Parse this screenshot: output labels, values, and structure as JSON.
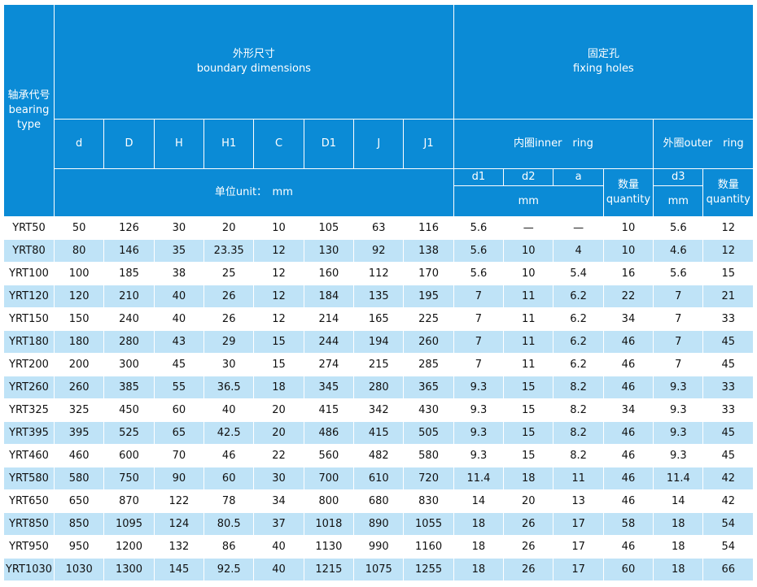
{
  "header": {
    "bearing_type": [
      "轴承代号",
      "bearing",
      "type"
    ],
    "boundary": [
      "外形尺寸",
      "boundary dimensions"
    ],
    "fixing": [
      "固定孔",
      "fixing holes"
    ],
    "columns": [
      "d",
      "D",
      "H",
      "H1",
      "C",
      "D1",
      "J",
      "J1"
    ],
    "inner_ring": "内圈inner　ring",
    "outer_ring": "外圈outer　ring",
    "unit": "单位unit：　mm",
    "d1": "d1",
    "d2": "d2",
    "a": "a",
    "d3": "d3",
    "quantity_inner": [
      "数量",
      "quantity"
    ],
    "quantity_outer": [
      "数量",
      "quantity"
    ],
    "mm_inner": "mm",
    "mm_outer": "mm"
  },
  "table": {
    "rows": [
      [
        "YRT50",
        50,
        126,
        30,
        20,
        10,
        105,
        63,
        116,
        5.6,
        "—",
        "—",
        10,
        5.6,
        12
      ],
      [
        "YRT80",
        80,
        146,
        35,
        23.35,
        12,
        130,
        92,
        138,
        5.6,
        10,
        4,
        10,
        4.6,
        12
      ],
      [
        "YRT100",
        100,
        185,
        38,
        25,
        12,
        160,
        112,
        170,
        5.6,
        10,
        5.4,
        16,
        5.6,
        15
      ],
      [
        "YRT120",
        120,
        210,
        40,
        26,
        12,
        184,
        135,
        195,
        7,
        11,
        6.2,
        22,
        7,
        21
      ],
      [
        "YRT150",
        150,
        240,
        40,
        26,
        12,
        214,
        165,
        225,
        7,
        11,
        6.2,
        34,
        7,
        33
      ],
      [
        "YRT180",
        180,
        280,
        43,
        29,
        15,
        244,
        194,
        260,
        7,
        11,
        6.2,
        46,
        7,
        45
      ],
      [
        "YRT200",
        200,
        300,
        45,
        30,
        15,
        274,
        215,
        285,
        7,
        11,
        6.2,
        46,
        7,
        45
      ],
      [
        "YRT260",
        260,
        385,
        55,
        36.5,
        18,
        345,
        280,
        365,
        9.3,
        15,
        8.2,
        46,
        9.3,
        33
      ],
      [
        "YRT325",
        325,
        450,
        60,
        40,
        20,
        415,
        342,
        430,
        9.3,
        15,
        8.2,
        34,
        9.3,
        33
      ],
      [
        "YRT395",
        395,
        525,
        65,
        42.5,
        20,
        486,
        415,
        505,
        9.3,
        15,
        8.2,
        46,
        9.3,
        45
      ],
      [
        "YRT460",
        460,
        600,
        70,
        46,
        22,
        560,
        482,
        580,
        9.3,
        15,
        8.2,
        46,
        9.3,
        45
      ],
      [
        "YRT580",
        580,
        750,
        90,
        60,
        30,
        700,
        610,
        720,
        11.4,
        18,
        11,
        46,
        11.4,
        42
      ],
      [
        "YRT650",
        650,
        870,
        122,
        78,
        34,
        800,
        680,
        830,
        14,
        20,
        13,
        46,
        14,
        42
      ],
      [
        "YRT850",
        850,
        1095,
        124,
        80.5,
        37,
        1018,
        890,
        1055,
        18,
        26,
        17,
        58,
        18,
        54
      ],
      [
        "YRT950",
        950,
        1200,
        132,
        86,
        40,
        1130,
        990,
        1160,
        18,
        26,
        17,
        46,
        18,
        54
      ],
      [
        "YRT1030",
        1030,
        1300,
        145,
        92.5,
        40,
        1215,
        1075,
        1255,
        18,
        26,
        17,
        60,
        18,
        66
      ]
    ]
  }
}
